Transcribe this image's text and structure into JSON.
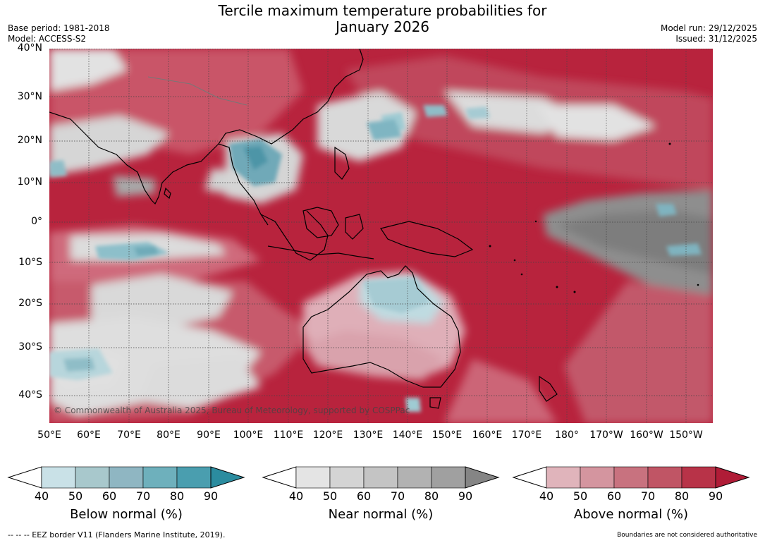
{
  "header": {
    "title_line1": "Tercile maximum temperature probabilities for",
    "title_line2": "January 2026",
    "base_period": "Base period: 1981-2018",
    "model": "Model: ACCESS-S2",
    "model_run": "Model run: 29/12/2025",
    "issued": "Issued: 31/12/2025"
  },
  "map": {
    "lat_labels": [
      "40°N",
      "30°N",
      "20°N",
      "10°N",
      "0°",
      "10°S",
      "20°S",
      "30°S",
      "40°S"
    ],
    "lon_labels": [
      "50°E",
      "60°E",
      "70°E",
      "80°E",
      "90°E",
      "100°E",
      "110°E",
      "120°E",
      "130°E",
      "140°E",
      "150°E",
      "160°E",
      "170°E",
      "180°",
      "170°W",
      "160°W",
      "150°W"
    ],
    "copyright": "© Commonwealth of Australia 2025, Bureau of Meteorology, supported by COSPPac"
  },
  "colorbars": [
    {
      "title": "Below normal (%)",
      "ticks": [
        "40",
        "50",
        "60",
        "70",
        "80",
        "90"
      ],
      "colors": [
        "#c9e1e7",
        "#a8c8cc",
        "#8fb6c2",
        "#6eb0bc",
        "#4a9eaf",
        "#2b8c9f"
      ]
    },
    {
      "title": "Near normal (%)",
      "ticks": [
        "40",
        "50",
        "60",
        "70",
        "80",
        "90"
      ],
      "colors": [
        "#e4e4e4",
        "#d4d4d4",
        "#c4c4c4",
        "#b2b2b2",
        "#a0a0a0",
        "#858585"
      ]
    },
    {
      "title": "Above normal (%)",
      "ticks": [
        "40",
        "50",
        "60",
        "70",
        "80",
        "90"
      ],
      "colors": [
        "#e0b4bb",
        "#d4959f",
        "#c8727f",
        "#c05565",
        "#b83348",
        "#b01c37"
      ]
    }
  ],
  "footer": {
    "eez": "--  --  -- EEZ border V11 (Flanders Marine Institute, 2019).",
    "disclaimer": "Boundaries are not considered authoritative"
  },
  "colors": {
    "above_dark": "#b51d39",
    "above_mid": "#c85567",
    "above_light": "#dfa9b2",
    "near_light": "#dcdcdc",
    "near_dark": "#8a8a8a",
    "below_mid": "#7fb3bf",
    "land_line": "#000000"
  }
}
